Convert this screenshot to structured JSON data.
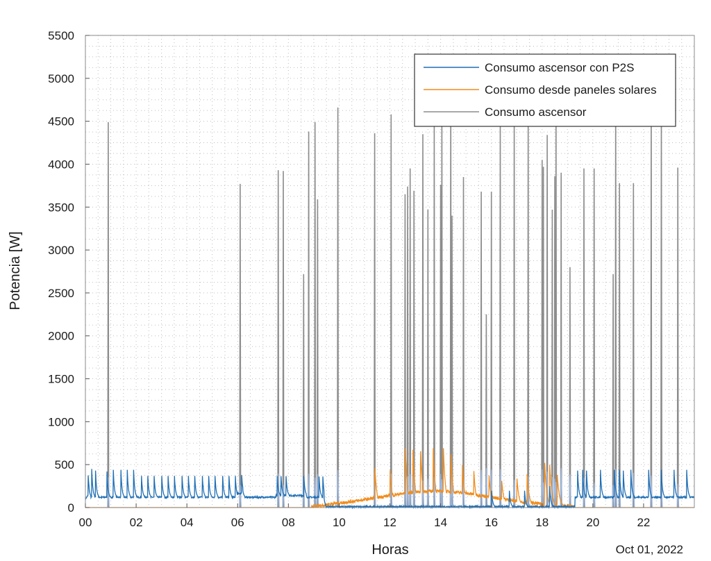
{
  "chart_data": {
    "type": "line",
    "title": "",
    "xlabel": "Horas",
    "ylabel": "Potencia [W]",
    "date_label": "Oct 01, 2022",
    "xlim": [
      0,
      24
    ],
    "ylim": [
      0,
      5500
    ],
    "x_ticks": [
      0,
      2,
      4,
      6,
      8,
      10,
      12,
      14,
      16,
      18,
      20,
      22
    ],
    "x_tick_labels": [
      "00",
      "02",
      "04",
      "06",
      "08",
      "10",
      "12",
      "14",
      "16",
      "18",
      "20",
      "22"
    ],
    "y_ticks": [
      0,
      500,
      1000,
      1500,
      2000,
      2500,
      3000,
      3500,
      4000,
      4500,
      5000,
      5500
    ],
    "y_tick_labels": [
      "0",
      "500",
      "1000",
      "1500",
      "2000",
      "2500",
      "3000",
      "3500",
      "4000",
      "4500",
      "5000",
      "5500"
    ],
    "grid": true,
    "legend_position": "top-right",
    "colors": {
      "p2s": "#1f6fb5",
      "solar": "#f28c1c",
      "ascensor": "#8c8c8c"
    },
    "series": [
      {
        "name": "Consumo ascensor con P2S",
        "color": "#1f6fb5",
        "baseline": 120,
        "spike_times": [
          0.1,
          0.25,
          0.4,
          0.85,
          1.1,
          1.4,
          1.65,
          1.9,
          2.2,
          2.45,
          2.7,
          3.0,
          3.25,
          3.5,
          3.8,
          4.05,
          4.3,
          4.6,
          4.85,
          5.1,
          5.4,
          5.65,
          5.9,
          6.15,
          7.55,
          7.7,
          7.9,
          8.6,
          9.2,
          9.35,
          16.0,
          16.7,
          17.3,
          18.3,
          19.4,
          19.6,
          19.75,
          20.3,
          20.85,
          21.05,
          21.2,
          21.5,
          22.2,
          22.7,
          23.2,
          23.7
        ],
        "spike_values": [
          440,
          450,
          430,
          420,
          440,
          440,
          440,
          440,
          440,
          440,
          440,
          440,
          440,
          440,
          440,
          440,
          440,
          440,
          440,
          440,
          440,
          440,
          440,
          440,
          430,
          430,
          430,
          430,
          430,
          430,
          250,
          250,
          250,
          250,
          430,
          440,
          430,
          440,
          440,
          440,
          430,
          440,
          440,
          440,
          440,
          440
        ],
        "low_window": [
          9.4,
          19.3
        ],
        "low_value": 10
      },
      {
        "name": "Consumo desde paneles solares",
        "color": "#f28c1c",
        "active_window": [
          8.9,
          19.3
        ],
        "envelope_peak": 330,
        "spike_times": [
          11.4,
          12.0,
          12.6,
          12.9,
          13.2,
          13.7,
          14.1,
          14.4,
          14.85,
          15.3,
          15.9,
          16.4,
          17.0,
          17.4,
          18.1,
          18.3,
          18.6
        ],
        "spike_values": [
          520,
          490,
          780,
          760,
          740,
          780,
          780,
          700,
          560,
          480,
          420,
          350,
          380,
          440,
          520,
          500,
          380
        ]
      },
      {
        "name": "Consumo ascensor",
        "color": "#8c8c8c",
        "spike_times": [
          0.9,
          6.1,
          7.6,
          7.8,
          8.6,
          8.8,
          9.05,
          9.15,
          9.95,
          11.4,
          12.05,
          12.6,
          12.7,
          12.8,
          12.95,
          13.3,
          13.5,
          13.75,
          14.0,
          14.05,
          14.4,
          14.45,
          14.9,
          15.6,
          15.8,
          16.0,
          16.35,
          16.9,
          17.45,
          18.0,
          18.05,
          18.2,
          18.4,
          18.5,
          18.55,
          18.75,
          19.1,
          19.65,
          20.05,
          20.8,
          20.9,
          21.05,
          21.6,
          22.3,
          22.7,
          23.35
        ],
        "spike_values": [
          4490,
          3770,
          3930,
          3920,
          2720,
          4380,
          4490,
          3590,
          4660,
          4360,
          4580,
          3650,
          3740,
          3950,
          3690,
          4350,
          3470,
          4520,
          3760,
          4690,
          4820,
          3400,
          3850,
          3680,
          2250,
          3680,
          4620,
          4590,
          4590,
          4050,
          3970,
          4340,
          3470,
          3860,
          4680,
          3900,
          2800,
          3950,
          3950,
          2720,
          4780,
          3780,
          3780,
          4760,
          4760,
          3960
        ]
      }
    ]
  }
}
